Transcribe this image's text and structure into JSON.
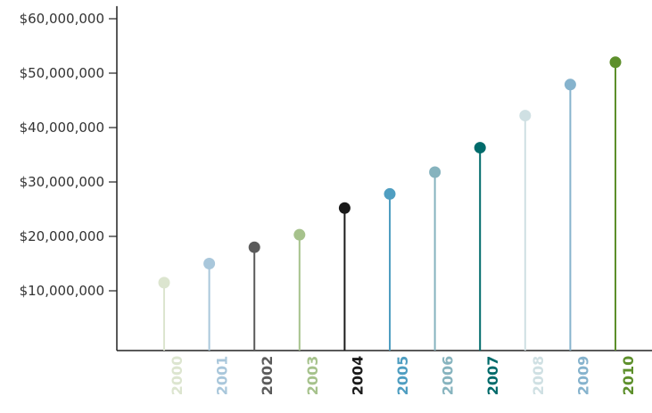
{
  "chart_data": {
    "type": "lollipop",
    "title": "",
    "xlabel": "",
    "ylabel": "",
    "categories": [
      "2000",
      "2001",
      "2002",
      "2003",
      "2004",
      "2005",
      "2006",
      "2007",
      "2008",
      "2009",
      "2010"
    ],
    "values": [
      11500000,
      15000000,
      18000000,
      20300000,
      25200000,
      27800000,
      31800000,
      36300000,
      42200000,
      47900000,
      52000000
    ],
    "colors": [
      "#dce5cf",
      "#a9c7db",
      "#5b5b5b",
      "#a6c28c",
      "#1a1a1a",
      "#4f9ec1",
      "#86b3be",
      "#006b6b",
      "#cfe0e3",
      "#86b3cd",
      "#5d8f2b"
    ],
    "y_ticks": [
      10000000,
      20000000,
      30000000,
      40000000,
      50000000,
      60000000
    ],
    "y_tick_labels": [
      "$10,000,000",
      "$20,000,000",
      "$30,000,000",
      "$40,000,000",
      "$50,000,000",
      "$60,000,000"
    ],
    "ylim": [
      0,
      61000000
    ],
    "grid": false,
    "legend": "none"
  }
}
